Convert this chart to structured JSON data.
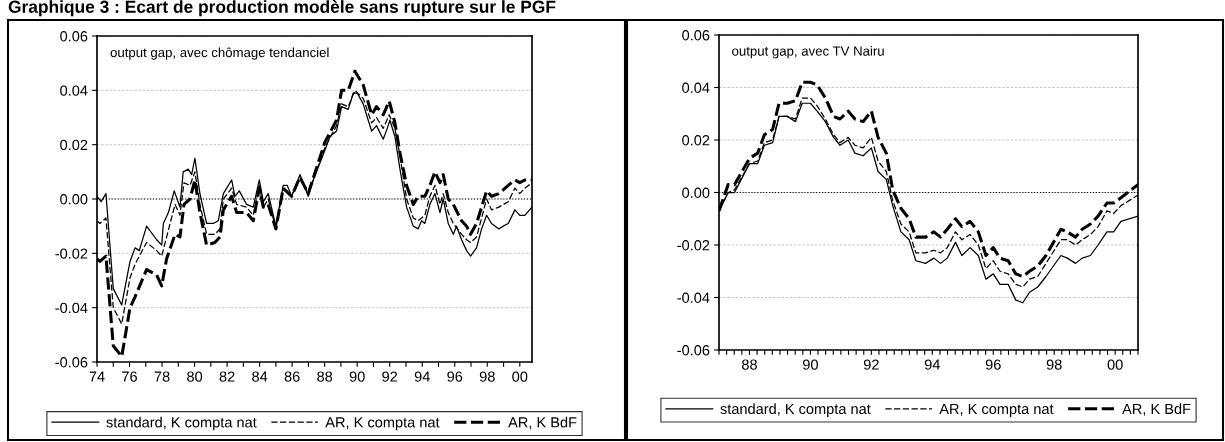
{
  "chart_data": [
    {
      "type": "line",
      "title": "Graphique 3 : Ecart de production modèle sans rupture sur le PGF",
      "annotations": [
        "output gap, avec chômage tendanciel"
      ],
      "xlim": [
        1974,
        2000.75
      ],
      "xticks": [
        {
          "value": 1974,
          "label": "74"
        },
        {
          "value": 1975,
          "label": null
        },
        {
          "value": 1976,
          "label": "76"
        },
        {
          "value": 1977,
          "label": null
        },
        {
          "value": 1978,
          "label": "78"
        },
        {
          "value": 1979,
          "label": null
        },
        {
          "value": 1980,
          "label": "80"
        },
        {
          "value": 1981,
          "label": null
        },
        {
          "value": 1982,
          "label": "82"
        },
        {
          "value": 1983,
          "label": null
        },
        {
          "value": 1984,
          "label": "84"
        },
        {
          "value": 1985,
          "label": null
        },
        {
          "value": 1986,
          "label": "86"
        },
        {
          "value": 1987,
          "label": null
        },
        {
          "value": 1988,
          "label": "88"
        },
        {
          "value": 1989,
          "label": null
        },
        {
          "value": 1990,
          "label": "90"
        },
        {
          "value": 1991,
          "label": null
        },
        {
          "value": 1992,
          "label": "92"
        },
        {
          "value": 1993,
          "label": null
        },
        {
          "value": 1994,
          "label": "94"
        },
        {
          "value": 1995,
          "label": null
        },
        {
          "value": 1996,
          "label": "96"
        },
        {
          "value": 1997,
          "label": null
        },
        {
          "value": 1998,
          "label": "98"
        },
        {
          "value": 1999,
          "label": null
        },
        {
          "value": 2000,
          "label": "00"
        }
      ],
      "ylim": [
        -0.06,
        0.06
      ],
      "yticks": [
        {
          "value": -0.06,
          "label": "-0.06"
        },
        {
          "value": -0.04,
          "label": "-0.04"
        },
        {
          "value": -0.02,
          "label": "-0.02"
        },
        {
          "value": 0,
          "label": "0.00"
        },
        {
          "value": 0.02,
          "label": "0.02"
        },
        {
          "value": 0.04,
          "label": "0.04"
        },
        {
          "value": 0.06,
          "label": "0.06"
        }
      ],
      "grid": "y",
      "legend": "bottom",
      "ref_lines": [
        {
          "axis": "y",
          "value": 0,
          "color": "#000000",
          "line_style": "dotted"
        }
      ],
      "series": [
        {
          "name": "standard, K compta nat",
          "color": "#000000",
          "line_style": "solid",
          "x": [
            1974.0,
            1974.25,
            1974.55,
            1975.0,
            1975.52,
            1976.03,
            1976.34,
            1976.6,
            1977.05,
            1977.67,
            1977.98,
            1978.08,
            1978.39,
            1978.75,
            1979.1,
            1979.3,
            1979.61,
            1979.82,
            1980.02,
            1980.33,
            1980.74,
            1981.15,
            1981.46,
            1981.77,
            1982.28,
            1982.48,
            1982.75,
            1983.2,
            1983.61,
            1983.98,
            1984.23,
            1984.53,
            1985.0,
            1985.45,
            1985.7,
            1985.97,
            1986.48,
            1986.99,
            1987.3,
            1988.02,
            1988.32,
            1988.73,
            1989.04,
            1989.45,
            1989.76,
            1990.0,
            1990.37,
            1990.68,
            1990.89,
            1991.19,
            1991.6,
            1991.85,
            1992.01,
            1992.32,
            1992.63,
            1993.04,
            1993.45,
            1993.75,
            1993.96,
            1994.16,
            1994.47,
            1994.78,
            1995.09,
            1995.29,
            1995.6,
            1995.91,
            1996.11,
            1996.42,
            1996.73,
            1996.97,
            1997.34,
            1997.65,
            1997.96,
            1998.26,
            1998.71,
            1998.98,
            1999.29,
            1999.7,
            2000.0,
            2000.31,
            2000.75
          ],
          "values": [
            0.001,
            -0.001,
            0.002,
            -0.033,
            -0.039,
            -0.023,
            -0.018,
            -0.019,
            -0.01,
            -0.015,
            -0.017,
            -0.009,
            -0.005,
            0.003,
            -0.003,
            0.01,
            0.011,
            0.009,
            0.015,
            0.002,
            -0.009,
            -0.009,
            -0.008,
            0.002,
            0.007,
            0.001,
            0.003,
            -0.002,
            -0.003,
            0.007,
            -0.001,
            0.002,
            -0.01,
            0.005,
            0.005,
            0.001,
            0.009,
            0.001,
            0.007,
            0.018,
            0.023,
            0.025,
            0.034,
            0.033,
            0.039,
            0.039,
            0.035,
            0.029,
            0.025,
            0.027,
            0.022,
            0.026,
            0.029,
            0.023,
            0.011,
            -0.003,
            -0.01,
            -0.011,
            -0.008,
            -0.009,
            -0.002,
            0.002,
            -0.005,
            0.0,
            -0.009,
            -0.013,
            -0.01,
            -0.015,
            -0.019,
            -0.021,
            -0.018,
            -0.011,
            -0.006,
            -0.009,
            -0.011,
            -0.01,
            -0.009,
            -0.004,
            -0.006,
            -0.006,
            -0.003
          ]
        },
        {
          "name": "AR, K compta nat",
          "color": "#000000",
          "line_style": "dashed",
          "x": [
            1974.0,
            1974.18,
            1974.55,
            1975.0,
            1975.52,
            1976.03,
            1976.34,
            1977.05,
            1977.67,
            1977.98,
            1978.28,
            1978.8,
            1979.1,
            1979.35,
            1979.72,
            1980.02,
            1980.33,
            1980.74,
            1981.25,
            1981.56,
            1981.77,
            1982.28,
            1982.59,
            1983.2,
            1983.61,
            1983.98,
            1984.23,
            1984.53,
            1985.0,
            1985.45,
            1985.97,
            1986.48,
            1986.99,
            1988.02,
            1988.73,
            1989.04,
            1989.45,
            1989.86,
            1990.37,
            1990.89,
            1991.19,
            1991.6,
            1991.97,
            1992.32,
            1992.63,
            1993.04,
            1993.45,
            1993.75,
            1994.16,
            1994.47,
            1994.78,
            1995.09,
            1995.29,
            1995.6,
            1995.91,
            1996.42,
            1996.73,
            1996.97,
            1997.34,
            1997.96,
            1998.26,
            1998.71,
            1999.29,
            1999.7,
            2000.0,
            2000.31,
            2000.75
          ],
          "values": [
            -0.008,
            -0.009,
            -0.007,
            -0.04,
            -0.046,
            -0.029,
            -0.024,
            -0.016,
            -0.019,
            -0.021,
            -0.014,
            -0.002,
            -0.006,
            0.006,
            0.005,
            0.01,
            -0.002,
            -0.013,
            -0.013,
            -0.011,
            0.0,
            0.004,
            -0.002,
            -0.003,
            -0.006,
            0.005,
            -0.003,
            0.0,
            -0.011,
            0.004,
            0.001,
            0.008,
            0.002,
            0.019,
            0.027,
            0.035,
            0.034,
            0.04,
            0.037,
            0.028,
            0.03,
            0.026,
            0.031,
            0.026,
            0.016,
            0.0,
            -0.007,
            -0.008,
            -0.006,
            0.001,
            0.005,
            -0.002,
            0.002,
            -0.005,
            -0.009,
            -0.013,
            -0.015,
            -0.016,
            -0.014,
            0.0,
            -0.004,
            -0.003,
            -0.001,
            0.004,
            0.002,
            0.004,
            0.006
          ]
        },
        {
          "name": "AR, K BdF",
          "color": "#000000",
          "line_style": "dashed",
          "x": [
            1974.0,
            1974.18,
            1974.55,
            1975.0,
            1975.52,
            1976.03,
            1976.34,
            1977.05,
            1977.67,
            1977.98,
            1978.28,
            1978.8,
            1979.1,
            1979.35,
            1979.72,
            1980.02,
            1980.33,
            1980.74,
            1981.25,
            1981.56,
            1981.77,
            1982.28,
            1982.59,
            1983.2,
            1983.61,
            1983.98,
            1984.23,
            1984.53,
            1985.0,
            1985.45,
            1985.97,
            1986.48,
            1986.99,
            1988.02,
            1988.73,
            1989.04,
            1989.45,
            1989.86,
            1990.37,
            1990.89,
            1991.19,
            1991.6,
            1991.97,
            1992.32,
            1992.63,
            1993.04,
            1993.45,
            1993.75,
            1994.16,
            1994.47,
            1994.78,
            1995.09,
            1995.29,
            1995.6,
            1995.91,
            1996.42,
            1996.73,
            1996.97,
            1997.34,
            1997.96,
            1998.26,
            1998.71,
            1999.29,
            1999.7,
            2000.0,
            2000.31,
            2000.75
          ],
          "values": [
            -0.022,
            -0.023,
            -0.021,
            -0.054,
            -0.058,
            -0.04,
            -0.036,
            -0.026,
            -0.028,
            -0.032,
            -0.022,
            -0.013,
            -0.014,
            -0.002,
            0.0,
            0.007,
            -0.005,
            -0.017,
            -0.016,
            -0.014,
            -0.004,
            0.001,
            -0.005,
            -0.005,
            -0.008,
            0.004,
            -0.003,
            -0.002,
            -0.011,
            0.004,
            0.001,
            0.008,
            0.002,
            0.021,
            0.029,
            0.04,
            0.04,
            0.047,
            0.042,
            0.031,
            0.034,
            0.031,
            0.036,
            0.028,
            0.017,
            0.005,
            -0.002,
            0.001,
            0.001,
            0.005,
            0.01,
            0.006,
            0.009,
            0.0,
            -0.002,
            -0.008,
            -0.01,
            -0.013,
            -0.009,
            0.003,
            0.001,
            0.002,
            0.005,
            0.007,
            0.006,
            0.007,
            0.007
          ]
        }
      ]
    },
    {
      "type": "line",
      "annotations": [
        "output gap, avec TV Nairu"
      ],
      "xlim": [
        1987,
        2000.75
      ],
      "xticks": [
        {
          "value": 1987,
          "label": null
        },
        {
          "value": 1987.25,
          "label": null
        },
        {
          "value": 1987.5,
          "label": null
        },
        {
          "value": 1987.75,
          "label": null
        },
        {
          "value": 1988,
          "label": "88"
        },
        {
          "value": 1988.25,
          "label": null
        },
        {
          "value": 1988.5,
          "label": null
        },
        {
          "value": 1988.75,
          "label": null
        },
        {
          "value": 1989,
          "label": null
        },
        {
          "value": 1989.25,
          "label": null
        },
        {
          "value": 1989.5,
          "label": null
        },
        {
          "value": 1989.75,
          "label": null
        },
        {
          "value": 1990,
          "label": "90"
        },
        {
          "value": 1990.25,
          "label": null
        },
        {
          "value": 1990.5,
          "label": null
        },
        {
          "value": 1990.75,
          "label": null
        },
        {
          "value": 1991,
          "label": null
        },
        {
          "value": 1991.25,
          "label": null
        },
        {
          "value": 1991.5,
          "label": null
        },
        {
          "value": 1991.75,
          "label": null
        },
        {
          "value": 1992,
          "label": "92"
        },
        {
          "value": 1992.25,
          "label": null
        },
        {
          "value": 1992.5,
          "label": null
        },
        {
          "value": 1992.75,
          "label": null
        },
        {
          "value": 1993,
          "label": null
        },
        {
          "value": 1993.25,
          "label": null
        },
        {
          "value": 1993.5,
          "label": null
        },
        {
          "value": 1993.75,
          "label": null
        },
        {
          "value": 1994,
          "label": "94"
        },
        {
          "value": 1994.25,
          "label": null
        },
        {
          "value": 1994.5,
          "label": null
        },
        {
          "value": 1994.75,
          "label": null
        },
        {
          "value": 1995,
          "label": null
        },
        {
          "value": 1995.25,
          "label": null
        },
        {
          "value": 1995.5,
          "label": null
        },
        {
          "value": 1995.75,
          "label": null
        },
        {
          "value": 1996,
          "label": "96"
        },
        {
          "value": 1996.25,
          "label": null
        },
        {
          "value": 1996.5,
          "label": null
        },
        {
          "value": 1996.75,
          "label": null
        },
        {
          "value": 1997,
          "label": null
        },
        {
          "value": 1997.25,
          "label": null
        },
        {
          "value": 1997.5,
          "label": null
        },
        {
          "value": 1997.75,
          "label": null
        },
        {
          "value": 1998,
          "label": "98"
        },
        {
          "value": 1998.25,
          "label": null
        },
        {
          "value": 1998.5,
          "label": null
        },
        {
          "value": 1998.75,
          "label": null
        },
        {
          "value": 1999,
          "label": null
        },
        {
          "value": 1999.25,
          "label": null
        },
        {
          "value": 1999.5,
          "label": null
        },
        {
          "value": 1999.75,
          "label": null
        },
        {
          "value": 2000,
          "label": "00"
        },
        {
          "value": 2000.25,
          "label": null
        },
        {
          "value": 2000.5,
          "label": null
        },
        {
          "value": 2000.75,
          "label": null
        }
      ],
      "ylim": [
        -0.06,
        0.06
      ],
      "yticks": [
        {
          "value": -0.06,
          "label": "-0.06"
        },
        {
          "value": -0.04,
          "label": "-0.04"
        },
        {
          "value": -0.02,
          "label": "-0.02"
        },
        {
          "value": 0,
          "label": "0.00"
        },
        {
          "value": 0.02,
          "label": "0.02"
        },
        {
          "value": 0.04,
          "label": "0.04"
        },
        {
          "value": 0.06,
          "label": "0.06"
        }
      ],
      "grid": "y",
      "legend": "bottom",
      "ref_lines": [
        {
          "axis": "y",
          "value": 0,
          "color": "#000000",
          "line_style": "dotted"
        }
      ],
      "x": [
        1987.0,
        1987.3,
        1987.51,
        1988.0,
        1988.27,
        1988.49,
        1988.76,
        1988.97,
        1989.24,
        1989.51,
        1989.73,
        1990.0,
        1990.22,
        1990.49,
        1990.76,
        1990.97,
        1991.24,
        1991.46,
        1991.73,
        1992.0,
        1992.22,
        1992.49,
        1992.7,
        1992.97,
        1993.24,
        1993.46,
        1993.78,
        1994.05,
        1994.27,
        1994.49,
        1994.76,
        1994.97,
        1995.24,
        1995.51,
        1995.76,
        1996.0,
        1996.22,
        1996.49,
        1996.74,
        1996.97,
        1997.19,
        1997.46,
        1997.73,
        1998.22,
        1998.43,
        1998.7,
        1998.92,
        1999.19,
        1999.44,
        1999.73,
        1999.95,
        2000.19,
        2000.75
      ],
      "series": [
        {
          "name": "standard, K compta nat",
          "color": "#000000",
          "line_style": "solid",
          "values": [
            -0.007,
            0.0,
            0.0,
            0.011,
            0.011,
            0.018,
            0.019,
            0.029,
            0.029,
            0.027,
            0.034,
            0.034,
            0.031,
            0.027,
            0.021,
            0.018,
            0.02,
            0.015,
            0.014,
            0.017,
            0.008,
            0.005,
            -0.005,
            -0.015,
            -0.018,
            -0.026,
            -0.027,
            -0.025,
            -0.027,
            -0.025,
            -0.019,
            -0.024,
            -0.021,
            -0.024,
            -0.033,
            -0.031,
            -0.035,
            -0.035,
            -0.041,
            -0.042,
            -0.038,
            -0.036,
            -0.032,
            -0.024,
            -0.025,
            -0.027,
            -0.025,
            -0.024,
            -0.02,
            -0.015,
            -0.015,
            -0.011,
            -0.009
          ]
        },
        {
          "name": "AR, K compta nat",
          "color": "#000000",
          "line_style": "dashed",
          "values": [
            -0.007,
            0.0,
            0.001,
            0.011,
            0.012,
            0.019,
            0.02,
            0.029,
            0.029,
            0.028,
            0.036,
            0.036,
            0.033,
            0.028,
            0.022,
            0.019,
            0.021,
            0.018,
            0.017,
            0.021,
            0.012,
            0.008,
            -0.003,
            -0.012,
            -0.015,
            -0.023,
            -0.023,
            -0.022,
            -0.023,
            -0.021,
            -0.015,
            -0.018,
            -0.016,
            -0.02,
            -0.029,
            -0.026,
            -0.03,
            -0.031,
            -0.035,
            -0.036,
            -0.033,
            -0.032,
            -0.027,
            -0.018,
            -0.018,
            -0.02,
            -0.018,
            -0.016,
            -0.013,
            -0.007,
            -0.008,
            -0.005,
            -0.001
          ]
        },
        {
          "name": "AR, K BdF",
          "color": "#000000",
          "line_style": "dashed",
          "values": [
            -0.007,
            0.003,
            0.003,
            0.013,
            0.015,
            0.022,
            0.024,
            0.034,
            0.034,
            0.035,
            0.042,
            0.042,
            0.041,
            0.036,
            0.029,
            0.028,
            0.031,
            0.028,
            0.027,
            0.031,
            0.021,
            0.015,
            0.001,
            -0.006,
            -0.01,
            -0.017,
            -0.017,
            -0.015,
            -0.017,
            -0.014,
            -0.01,
            -0.013,
            -0.011,
            -0.015,
            -0.024,
            -0.021,
            -0.025,
            -0.026,
            -0.031,
            -0.032,
            -0.03,
            -0.028,
            -0.024,
            -0.014,
            -0.015,
            -0.017,
            -0.014,
            -0.012,
            -0.009,
            -0.004,
            -0.004,
            -0.002,
            0.003
          ]
        }
      ]
    }
  ]
}
